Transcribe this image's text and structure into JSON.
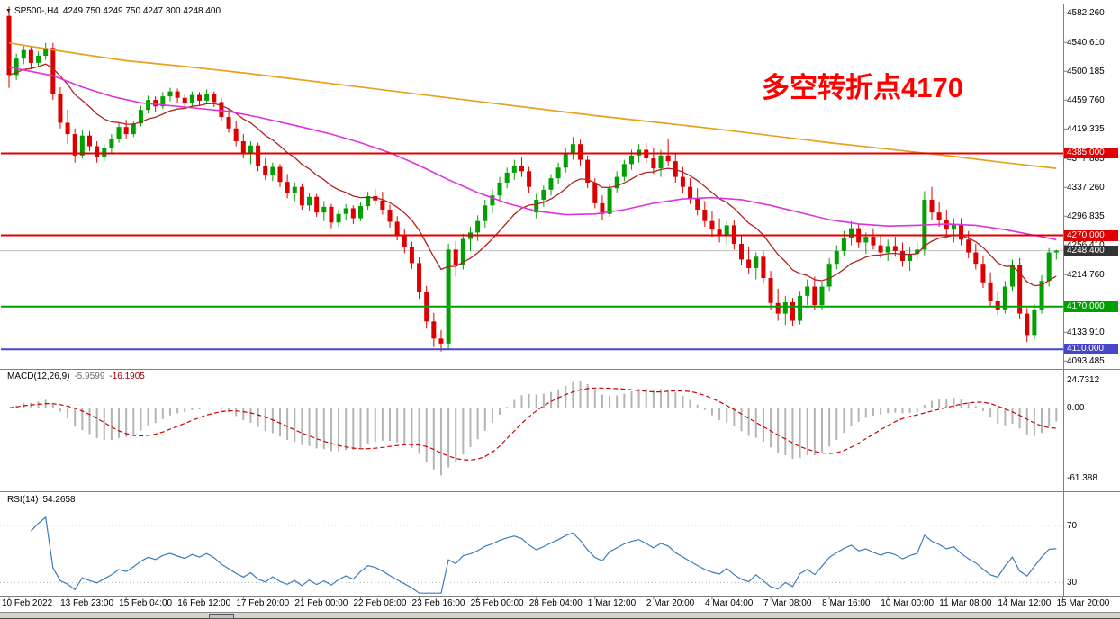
{
  "header": {
    "symbol_period": "SP500-,H4",
    "ohlc": "4249.750 4249.750 4247.300 4248.400"
  },
  "annotation": {
    "text": "多空转折点4170",
    "color": "#ff0000"
  },
  "price_axis": [
    {
      "t": "4582.260",
      "v": 4582.26
    },
    {
      "t": "4540.610",
      "v": 4540.61
    },
    {
      "t": "4500.185",
      "v": 4500.185
    },
    {
      "t": "4459.760",
      "v": 4459.76
    },
    {
      "t": "4419.335",
      "v": 4419.335
    },
    {
      "t": "4377.885",
      "v": 4377.885
    },
    {
      "t": "4337.260",
      "v": 4337.26
    },
    {
      "t": "4296.835",
      "v": 4296.835
    },
    {
      "t": "4256.410",
      "v": 4256.41
    },
    {
      "t": "4214.760",
      "v": 4214.76
    },
    {
      "t": "4133.910",
      "v": 4133.91
    },
    {
      "t": "4093.485",
      "v": 4093.485
    }
  ],
  "price_lines": [
    {
      "label": "4385.000",
      "value": 4385,
      "color": "#e00000"
    },
    {
      "label": "4270.000",
      "value": 4270,
      "color": "#e00000"
    },
    {
      "label": "4170.000",
      "value": 4170,
      "color": "#00a000"
    },
    {
      "label": "4110.000",
      "value": 4110,
      "color": "#4646c8"
    }
  ],
  "current_price": {
    "label": "4248.400",
    "value": 4248.4,
    "badge_color": "#333333",
    "line_color": "#c0c0c0"
  },
  "indicators": {
    "macd": {
      "name": "MACD(12,26,9)",
      "value_main": "-5.9599",
      "value_signal": "-16.1905",
      "axis": [
        {
          "t": "24.7312",
          "v": 24.7312
        },
        {
          "t": "0.00",
          "v": 0
        },
        {
          "t": "-61.388",
          "v": -61.388
        }
      ]
    },
    "rsi": {
      "name": "RSI(14)",
      "value": "54.2658",
      "axis": [
        {
          "t": "70",
          "v": 70
        },
        {
          "t": "30",
          "v": 30
        }
      ]
    }
  },
  "colors": {
    "bull": "#00a000",
    "bear": "#dd0000",
    "ma_orange": "#e8a020",
    "ma_magenta": "#dd33dd",
    "ma_darkred": "#b22222",
    "macd_hist": "#b4b4b4",
    "macd_signal": "#cc0000",
    "rsi_line": "#3b7bbf",
    "level_dotted": "#b0b0b0",
    "separator": "#808080"
  },
  "chart_data": {
    "type": "candlestick",
    "symbol": "SP500-",
    "timeframe": "H4",
    "title": "SP500- H4 candlestick chart with MACD(12,26,9) and RSI(14)",
    "ylim": [
      4085,
      4594
    ],
    "x_labels": [
      "10 Feb 2022",
      "13 Feb 23:00",
      "15 Feb 04:00",
      "16 Feb 12:00",
      "17 Feb 20:00",
      "21 Feb 00:00",
      "22 Feb 08:00",
      "23 Feb 16:00",
      "25 Feb 00:00",
      "28 Feb 04:00",
      "1 Mar 12:00",
      "2 Mar 20:00",
      "4 Mar 04:00",
      "7 Mar 08:00",
      "8 Mar 16:00",
      "10 Mar 00:00",
      "11 Mar 08:00",
      "14 Mar 12:00",
      "15 Mar 20:00"
    ],
    "candles_per_label": 8,
    "candles": [
      [
        4578,
        4591,
        4477,
        4495
      ],
      [
        4495,
        4525,
        4488,
        4518
      ],
      [
        4518,
        4536,
        4510,
        4530
      ],
      [
        4530,
        4534,
        4505,
        4512
      ],
      [
        4512,
        4528,
        4506,
        4522
      ],
      [
        4522,
        4540,
        4516,
        4533
      ],
      [
        4533,
        4540,
        4460,
        4468
      ],
      [
        4468,
        4478,
        4420,
        4428
      ],
      [
        4428,
        4446,
        4398,
        4412
      ],
      [
        4412,
        4420,
        4372,
        4382
      ],
      [
        4382,
        4418,
        4378,
        4410
      ],
      [
        4410,
        4416,
        4388,
        4395
      ],
      [
        4395,
        4402,
        4372,
        4380
      ],
      [
        4380,
        4398,
        4374,
        4392
      ],
      [
        4392,
        4412,
        4386,
        4405
      ],
      [
        4405,
        4428,
        4400,
        4422
      ],
      [
        4422,
        4432,
        4406,
        4412
      ],
      [
        4412,
        4431,
        4408,
        4427
      ],
      [
        4427,
        4452,
        4423,
        4446
      ],
      [
        4446,
        4466,
        4441,
        4460
      ],
      [
        4460,
        4465,
        4443,
        4451
      ],
      [
        4451,
        4471,
        4447,
        4465
      ],
      [
        4465,
        4477,
        4458,
        4472
      ],
      [
        4472,
        4476,
        4455,
        4463
      ],
      [
        4463,
        4468,
        4448,
        4455
      ],
      [
        4455,
        4472,
        4450,
        4467
      ],
      [
        4467,
        4471,
        4452,
        4459
      ],
      [
        4459,
        4475,
        4455,
        4469
      ],
      [
        4469,
        4472,
        4450,
        4457
      ],
      [
        4457,
        4462,
        4430,
        4436
      ],
      [
        4436,
        4448,
        4414,
        4420
      ],
      [
        4420,
        4430,
        4395,
        4402
      ],
      [
        4402,
        4412,
        4378,
        4386
      ],
      [
        4386,
        4402,
        4370,
        4396
      ],
      [
        4396,
        4400,
        4360,
        4368
      ],
      [
        4368,
        4378,
        4348,
        4355
      ],
      [
        4355,
        4372,
        4346,
        4366
      ],
      [
        4366,
        4370,
        4338,
        4345
      ],
      [
        4345,
        4356,
        4322,
        4330
      ],
      [
        4330,
        4344,
        4318,
        4338
      ],
      [
        4338,
        4342,
        4306,
        4312
      ],
      [
        4312,
        4330,
        4304,
        4324
      ],
      [
        4324,
        4328,
        4296,
        4302
      ],
      [
        4302,
        4318,
        4290,
        4310
      ],
      [
        4310,
        4314,
        4280,
        4288
      ],
      [
        4288,
        4306,
        4282,
        4300
      ],
      [
        4300,
        4314,
        4292,
        4308
      ],
      [
        4308,
        4312,
        4286,
        4294
      ],
      [
        4294,
        4316,
        4290,
        4311
      ],
      [
        4311,
        4331,
        4306,
        4325
      ],
      [
        4325,
        4335,
        4313,
        4319
      ],
      [
        4319,
        4331,
        4299,
        4306
      ],
      [
        4306,
        4313,
        4281,
        4289
      ],
      [
        4289,
        4297,
        4263,
        4271
      ],
      [
        4271,
        4279,
        4245,
        4253
      ],
      [
        4253,
        4261,
        4223,
        4231
      ],
      [
        4231,
        4239,
        4181,
        4191
      ],
      [
        4191,
        4199,
        4139,
        4149
      ],
      [
        4149,
        4161,
        4113,
        4125
      ],
      [
        4125,
        4137,
        4107,
        4118
      ],
      [
        4118,
        4258,
        4110,
        4250
      ],
      [
        4250,
        4262,
        4212,
        4228
      ],
      [
        4228,
        4272,
        4222,
        4265
      ],
      [
        4265,
        4282,
        4248,
        4274
      ],
      [
        4274,
        4298,
        4262,
        4290
      ],
      [
        4290,
        4320,
        4281,
        4312
      ],
      [
        4312,
        4335,
        4301,
        4326
      ],
      [
        4326,
        4352,
        4318,
        4344
      ],
      [
        4344,
        4365,
        4336,
        4358
      ],
      [
        4358,
        4376,
        4348,
        4368
      ],
      [
        4368,
        4380,
        4352,
        4360
      ],
      [
        4360,
        4366,
        4330,
        4338
      ],
      [
        4302,
        4328,
        4294,
        4320
      ],
      [
        4320,
        4340,
        4310,
        4334
      ],
      [
        4334,
        4356,
        4326,
        4350
      ],
      [
        4350,
        4372,
        4342,
        4365
      ],
      [
        4365,
        4392,
        4358,
        4385
      ],
      [
        4385,
        4408,
        4376,
        4398
      ],
      [
        4398,
        4404,
        4368,
        4376
      ],
      [
        4376,
        4382,
        4336,
        4344
      ],
      [
        4344,
        4350,
        4308,
        4315
      ],
      [
        4315,
        4326,
        4292,
        4300
      ],
      [
        4300,
        4342,
        4296,
        4336
      ],
      [
        4336,
        4360,
        4330,
        4352
      ],
      [
        4352,
        4376,
        4346,
        4370
      ],
      [
        4370,
        4390,
        4362,
        4382
      ],
      [
        4382,
        4398,
        4372,
        4390
      ],
      [
        4390,
        4400,
        4370,
        4378
      ],
      [
        4378,
        4392,
        4356,
        4364
      ],
      [
        4364,
        4390,
        4352,
        4382
      ],
      [
        4382,
        4406,
        4368,
        4374
      ],
      [
        4374,
        4384,
        4344,
        4352
      ],
      [
        4352,
        4366,
        4330,
        4338
      ],
      [
        4338,
        4350,
        4314,
        4322
      ],
      [
        4322,
        4336,
        4298,
        4306
      ],
      [
        4306,
        4318,
        4282,
        4290
      ],
      [
        4290,
        4304,
        4268,
        4278
      ],
      [
        4278,
        4294,
        4260,
        4270
      ],
      [
        4270,
        4290,
        4256,
        4284
      ],
      [
        4284,
        4292,
        4250,
        4258
      ],
      [
        4258,
        4270,
        4228,
        4236
      ],
      [
        4236,
        4254,
        4216,
        4224
      ],
      [
        4224,
        4246,
        4208,
        4240
      ],
      [
        4240,
        4248,
        4202,
        4210
      ],
      [
        4210,
        4220,
        4165,
        4175
      ],
      [
        4175,
        4195,
        4150,
        4160
      ],
      [
        4160,
        4185,
        4144,
        4176
      ],
      [
        4176,
        4182,
        4143,
        4150
      ],
      [
        4150,
        4192,
        4145,
        4185
      ],
      [
        4185,
        4208,
        4172,
        4198
      ],
      [
        4198,
        4212,
        4165,
        4172
      ],
      [
        4172,
        4205,
        4166,
        4198
      ],
      [
        4198,
        4238,
        4192,
        4230
      ],
      [
        4230,
        4256,
        4222,
        4248
      ],
      [
        4248,
        4276,
        4240,
        4266
      ],
      [
        4266,
        4290,
        4256,
        4280
      ],
      [
        4280,
        4286,
        4252,
        4260
      ],
      [
        4260,
        4274,
        4244,
        4268
      ],
      [
        4268,
        4280,
        4250,
        4256
      ],
      [
        4256,
        4270,
        4238,
        4246
      ],
      [
        4246,
        4264,
        4234,
        4255
      ],
      [
        4255,
        4268,
        4240,
        4248
      ],
      [
        4248,
        4260,
        4226,
        4234
      ],
      [
        4234,
        4254,
        4220,
        4244
      ],
      [
        4244,
        4260,
        4236,
        4250
      ],
      [
        4250,
        4332,
        4242,
        4320
      ],
      [
        4320,
        4338,
        4292,
        4302
      ],
      [
        4302,
        4316,
        4282,
        4292
      ],
      [
        4292,
        4306,
        4270,
        4278
      ],
      [
        4278,
        4294,
        4260,
        4286
      ],
      [
        4286,
        4294,
        4256,
        4264
      ],
      [
        4264,
        4276,
        4238,
        4246
      ],
      [
        4246,
        4258,
        4222,
        4230
      ],
      [
        4230,
        4242,
        4196,
        4204
      ],
      [
        4204,
        4218,
        4170,
        4178
      ],
      [
        4178,
        4192,
        4158,
        4166
      ],
      [
        4166,
        4206,
        4160,
        4198
      ],
      [
        4198,
        4236,
        4192,
        4228
      ],
      [
        4228,
        4238,
        4152,
        4160
      ],
      [
        4160,
        4168,
        4120,
        4130
      ],
      [
        4130,
        4174,
        4124,
        4166
      ],
      [
        4166,
        4214,
        4160,
        4206
      ],
      [
        4206,
        4252,
        4198,
        4246
      ],
      [
        4246,
        4250,
        4236,
        4248.4
      ]
    ],
    "overlays": {
      "ma_orange": {
        "points": [
          [
            0,
            4540
          ],
          [
            8,
            4527
          ],
          [
            16,
            4515
          ],
          [
            24,
            4507
          ],
          [
            32,
            4498
          ],
          [
            40,
            4488
          ],
          [
            48,
            4478
          ],
          [
            56,
            4468
          ],
          [
            64,
            4458
          ],
          [
            72,
            4448
          ],
          [
            80,
            4438
          ],
          [
            88,
            4429
          ],
          [
            96,
            4420
          ],
          [
            104,
            4410
          ],
          [
            112,
            4400
          ],
          [
            120,
            4391
          ],
          [
            128,
            4382
          ],
          [
            136,
            4372
          ],
          [
            143,
            4364
          ]
        ]
      },
      "ma_magenta": {
        "points": [
          [
            0,
            4506
          ],
          [
            6,
            4494
          ],
          [
            10,
            4478
          ],
          [
            14,
            4465
          ],
          [
            18,
            4456
          ],
          [
            24,
            4450
          ],
          [
            30,
            4444
          ],
          [
            34,
            4436
          ],
          [
            40,
            4422
          ],
          [
            44,
            4412
          ],
          [
            48,
            4400
          ],
          [
            52,
            4386
          ],
          [
            56,
            4368
          ],
          [
            60,
            4348
          ],
          [
            64,
            4330
          ],
          [
            68,
            4315
          ],
          [
            72,
            4304
          ],
          [
            76,
            4299
          ],
          [
            80,
            4300
          ],
          [
            84,
            4306
          ],
          [
            88,
            4315
          ],
          [
            92,
            4321
          ],
          [
            96,
            4323
          ],
          [
            100,
            4320
          ],
          [
            104,
            4312
          ],
          [
            108,
            4302
          ],
          [
            112,
            4292
          ],
          [
            116,
            4286
          ],
          [
            120,
            4283
          ],
          [
            124,
            4284
          ],
          [
            128,
            4286
          ],
          [
            132,
            4284
          ],
          [
            136,
            4278
          ],
          [
            140,
            4270
          ],
          [
            143,
            4264
          ]
        ]
      },
      "ma_darkred": {
        "type": "ema",
        "period": 13
      }
    },
    "macd": {
      "params": [
        12,
        26,
        9
      ],
      "ylim": [
        -72,
        33
      ]
    },
    "rsi": {
      "period": 14,
      "ylim": [
        22,
        92
      ],
      "levels": [
        30,
        70
      ]
    }
  }
}
